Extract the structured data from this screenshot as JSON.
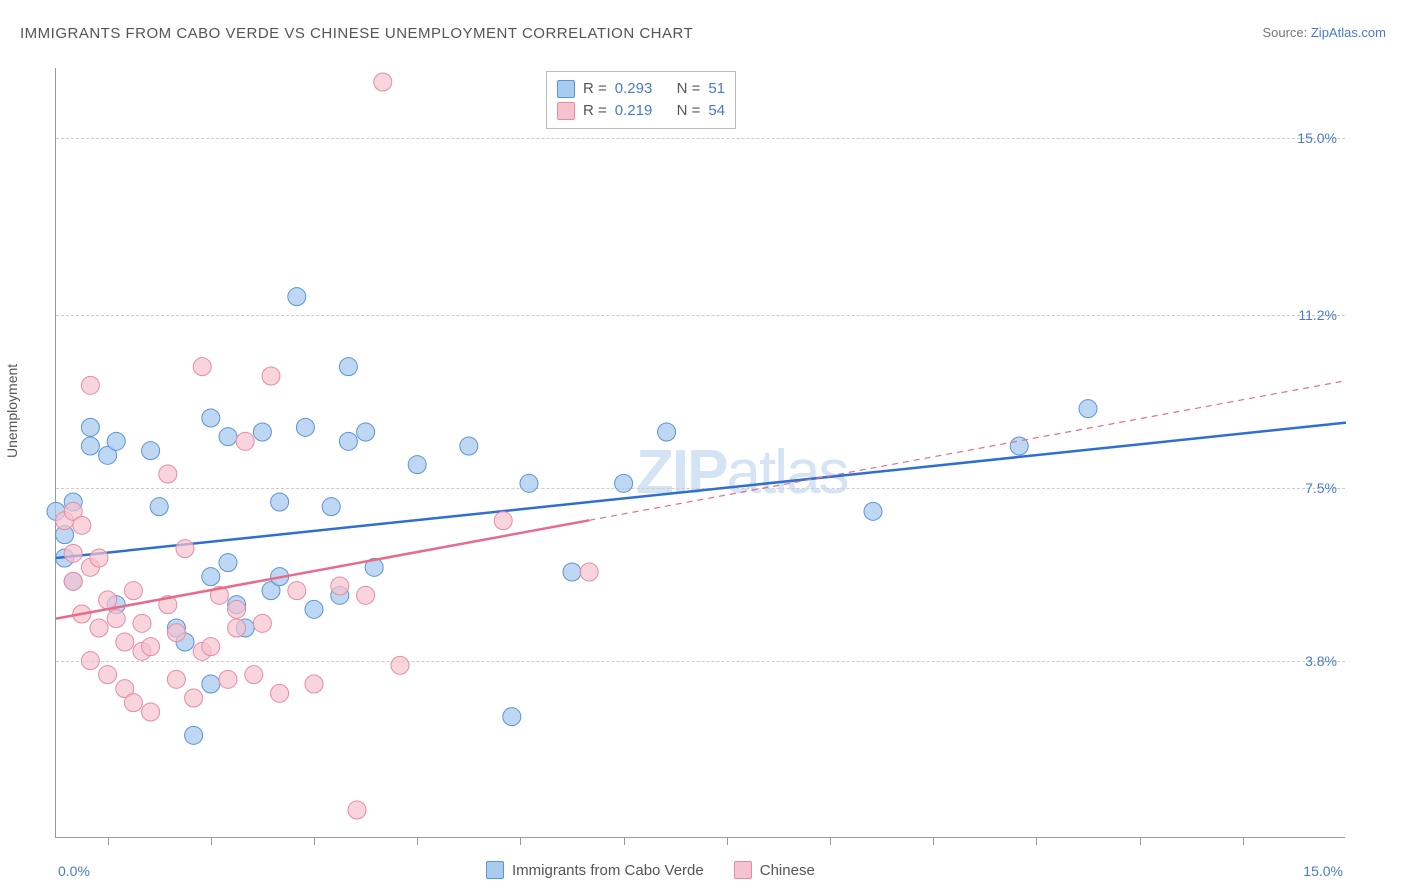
{
  "title": "IMMIGRANTS FROM CABO VERDE VS CHINESE UNEMPLOYMENT CORRELATION CHART",
  "source_prefix": "Source: ",
  "source_link": "ZipAtlas.com",
  "ylabel": "Unemployment",
  "watermark_a": "ZIP",
  "watermark_b": "atlas",
  "chart": {
    "type": "scatter",
    "xlim": [
      0,
      15
    ],
    "ylim": [
      0,
      16.5
    ],
    "yticks": [
      3.8,
      7.5,
      11.2,
      15.0
    ],
    "xticks_major": [
      0,
      15
    ],
    "xticks_minor_pct": [
      4,
      12,
      20,
      28,
      36,
      44,
      52,
      60,
      68,
      76,
      84,
      92
    ],
    "xaxis_labels": {
      "left": "0.0%",
      "right": "15.0%"
    },
    "background_color": "#ffffff",
    "grid_color": "#cccccc",
    "axis_color": "#999999",
    "watermark_color": "#d5e4f5",
    "series": [
      {
        "name": "Immigrants from Cabo Verde",
        "R": "0.293",
        "N": "51",
        "fill": "#a8cbf0",
        "stroke": "#5b94d6",
        "line_color": "#2f6fd0",
        "marker_radius": 9,
        "marker_opacity": 0.75,
        "trend": {
          "x1": 0,
          "y1": 6.0,
          "x2": 15,
          "y2": 8.9,
          "solid_until_x": 15
        },
        "points": [
          [
            0.0,
            7.0
          ],
          [
            0.1,
            6.5
          ],
          [
            0.1,
            6.0
          ],
          [
            0.2,
            5.5
          ],
          [
            0.2,
            7.2
          ],
          [
            0.4,
            8.4
          ],
          [
            0.4,
            8.8
          ],
          [
            0.6,
            8.2
          ],
          [
            0.7,
            5.0
          ],
          [
            0.7,
            8.5
          ],
          [
            1.1,
            8.3
          ],
          [
            1.2,
            7.1
          ],
          [
            1.4,
            4.5
          ],
          [
            1.5,
            4.2
          ],
          [
            1.6,
            2.2
          ],
          [
            1.8,
            9.0
          ],
          [
            1.8,
            5.6
          ],
          [
            1.8,
            3.3
          ],
          [
            2.0,
            8.6
          ],
          [
            2.0,
            5.9
          ],
          [
            2.1,
            5.0
          ],
          [
            2.2,
            4.5
          ],
          [
            2.4,
            8.7
          ],
          [
            2.5,
            5.3
          ],
          [
            2.6,
            7.2
          ],
          [
            2.6,
            5.6
          ],
          [
            2.8,
            11.6
          ],
          [
            2.9,
            8.8
          ],
          [
            3.0,
            4.9
          ],
          [
            3.2,
            7.1
          ],
          [
            3.3,
            5.2
          ],
          [
            3.4,
            10.1
          ],
          [
            3.4,
            8.5
          ],
          [
            3.6,
            8.7
          ],
          [
            3.7,
            5.8
          ],
          [
            4.2,
            8.0
          ],
          [
            4.8,
            8.4
          ],
          [
            5.3,
            2.6
          ],
          [
            5.5,
            7.6
          ],
          [
            6.0,
            5.7
          ],
          [
            6.6,
            7.6
          ],
          [
            7.1,
            8.7
          ],
          [
            9.5,
            7.0
          ],
          [
            11.2,
            8.4
          ],
          [
            12.0,
            9.2
          ]
        ]
      },
      {
        "name": "Chinese",
        "R": "0.219",
        "N": "54",
        "fill": "#f5c2cf",
        "stroke": "#e88ba3",
        "line_color": "#e86b8a",
        "marker_radius": 9,
        "marker_opacity": 0.7,
        "trend": {
          "x1": 0,
          "y1": 4.7,
          "x2": 15,
          "y2": 9.8,
          "solid_until_x": 6.2
        },
        "points": [
          [
            0.1,
            6.8
          ],
          [
            0.2,
            7.0
          ],
          [
            0.2,
            6.1
          ],
          [
            0.2,
            5.5
          ],
          [
            0.3,
            6.7
          ],
          [
            0.3,
            4.8
          ],
          [
            0.4,
            9.7
          ],
          [
            0.4,
            5.8
          ],
          [
            0.4,
            3.8
          ],
          [
            0.5,
            4.5
          ],
          [
            0.5,
            6.0
          ],
          [
            0.6,
            5.1
          ],
          [
            0.6,
            3.5
          ],
          [
            0.7,
            4.7
          ],
          [
            0.8,
            4.2
          ],
          [
            0.8,
            3.2
          ],
          [
            0.9,
            5.3
          ],
          [
            0.9,
            2.9
          ],
          [
            1.0,
            4.6
          ],
          [
            1.0,
            4.0
          ],
          [
            1.1,
            4.1
          ],
          [
            1.1,
            2.7
          ],
          [
            1.3,
            5.0
          ],
          [
            1.3,
            7.8
          ],
          [
            1.4,
            4.4
          ],
          [
            1.4,
            3.4
          ],
          [
            1.5,
            6.2
          ],
          [
            1.6,
            3.0
          ],
          [
            1.7,
            10.1
          ],
          [
            1.7,
            4.0
          ],
          [
            1.8,
            4.1
          ],
          [
            1.9,
            5.2
          ],
          [
            2.0,
            3.4
          ],
          [
            2.1,
            4.5
          ],
          [
            2.1,
            4.9
          ],
          [
            2.2,
            8.5
          ],
          [
            2.3,
            3.5
          ],
          [
            2.4,
            4.6
          ],
          [
            2.5,
            9.9
          ],
          [
            2.6,
            3.1
          ],
          [
            2.8,
            5.3
          ],
          [
            3.0,
            3.3
          ],
          [
            3.3,
            5.4
          ],
          [
            3.5,
            0.6
          ],
          [
            3.6,
            5.2
          ],
          [
            3.8,
            16.2
          ],
          [
            4.0,
            3.7
          ],
          [
            5.2,
            6.8
          ],
          [
            6.2,
            5.7
          ]
        ]
      }
    ]
  },
  "legend_bottom": [
    {
      "label": "Immigrants from Cabo Verde",
      "fill": "#a8cbf0",
      "stroke": "#5b94d6"
    },
    {
      "label": "Chinese",
      "fill": "#f5c2cf",
      "stroke": "#e88ba3"
    }
  ]
}
